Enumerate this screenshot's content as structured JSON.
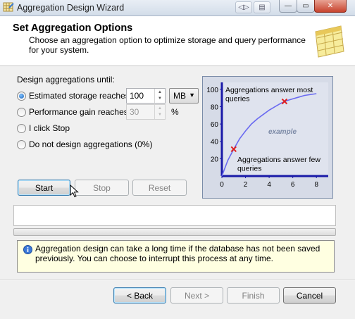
{
  "window": {
    "title": "Aggregation Design Wizard",
    "controls": {
      "minimize": "—",
      "maximize": "▭",
      "close": "✕"
    }
  },
  "header": {
    "title": "Set Aggregation Options",
    "description": "Choose an aggregation option to optimize storage and query performance for your system.",
    "icon": "wizard-grid-icon"
  },
  "options": {
    "group_label": "Design aggregations until:",
    "items": [
      {
        "label": "Estimated storage reaches",
        "selected": true
      },
      {
        "label": "Performance gain reaches",
        "selected": false
      },
      {
        "label": "I click Stop",
        "selected": false
      },
      {
        "label": "Do not design aggregations (0%)",
        "selected": false
      }
    ],
    "storage_value": "100",
    "storage_unit": "MB",
    "performance_value": "30",
    "performance_unit": "%"
  },
  "actions": {
    "start": "Start",
    "stop": "Stop",
    "reset": "Reset"
  },
  "chart": {
    "annotation_top": "Aggregations answer most queries",
    "annotation_bottom": "Aggregations answer few queries",
    "watermark": "example",
    "curve_color": "#6a6af0",
    "axis_color": "#1a1aa8"
  },
  "chart_data": {
    "type": "line",
    "title": "",
    "xlabel": "",
    "ylabel": "",
    "x_ticks": [
      "0",
      "2",
      "4",
      "6",
      "8"
    ],
    "y_ticks": [
      "20",
      "40",
      "60",
      "80",
      "100"
    ],
    "xlim": [
      0,
      9
    ],
    "ylim": [
      0,
      108
    ],
    "series": [
      {
        "x": [
          0,
          0.5,
          1,
          1.5,
          2,
          2.5,
          3,
          3.5,
          4,
          4.5,
          5,
          5.5,
          6,
          6.5,
          7,
          7.5,
          8
        ],
        "values": [
          0,
          18,
          31,
          43,
          52,
          60,
          66,
          71,
          76,
          80,
          84,
          87,
          89,
          91,
          93,
          94,
          95
        ]
      }
    ],
    "markers": [
      {
        "x": 1,
        "y": 31,
        "color": "#e02020"
      },
      {
        "x": 5.3,
        "y": 86,
        "color": "#e02020"
      }
    ]
  },
  "info": {
    "text": "Aggregation design can take a long time if the database has not been saved previously. You can choose to interrupt this process at any time."
  },
  "footer": {
    "back": "< Back",
    "next": "Next >",
    "finish": "Finish",
    "cancel": "Cancel"
  }
}
